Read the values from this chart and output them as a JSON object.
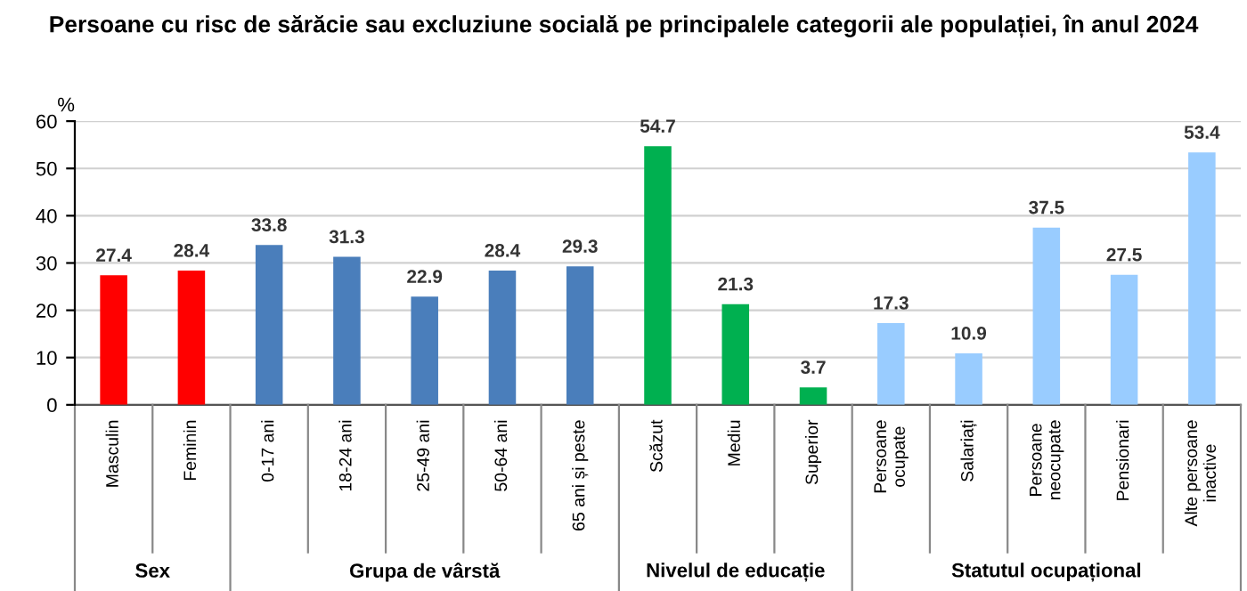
{
  "chart_data": {
    "type": "bar",
    "title": "Persoane cu risc de sărăcie sau excluziune socială pe principalele categorii ale populației, în anul 2024",
    "ylabel": "%",
    "categories": [
      "Masculin",
      "Feminin",
      "0-17 ani",
      "18-24 ani",
      "25-49 ani",
      "50-64 ani",
      "65 ani și peste",
      "Scăzut",
      "Mediu",
      "Superior",
      "Persoane\nocupate",
      "Salariați",
      "Persoane\nneocupate",
      "Pensionari",
      "Alte persoane\ninactive"
    ],
    "values": [
      27.4,
      28.4,
      33.8,
      31.3,
      22.9,
      28.4,
      29.3,
      54.7,
      21.3,
      3.7,
      17.3,
      10.9,
      37.5,
      27.5,
      53.4
    ],
    "colors": [
      "#ff0000",
      "#ff0000",
      "#4a7ebb",
      "#4a7ebb",
      "#4a7ebb",
      "#4a7ebb",
      "#4a7ebb",
      "#00b050",
      "#00b050",
      "#00b050",
      "#99ccff",
      "#99ccff",
      "#99ccff",
      "#99ccff",
      "#99ccff"
    ],
    "annotations": [
      "Sex",
      "Grupa de vârstă",
      "Nivelul de educație",
      "Statutul ocupațional"
    ],
    "ylim": [
      0,
      60
    ],
    "yticks": [
      0,
      10,
      20,
      30,
      40,
      50,
      60
    ],
    "grid": "y",
    "data_labels": true
  }
}
